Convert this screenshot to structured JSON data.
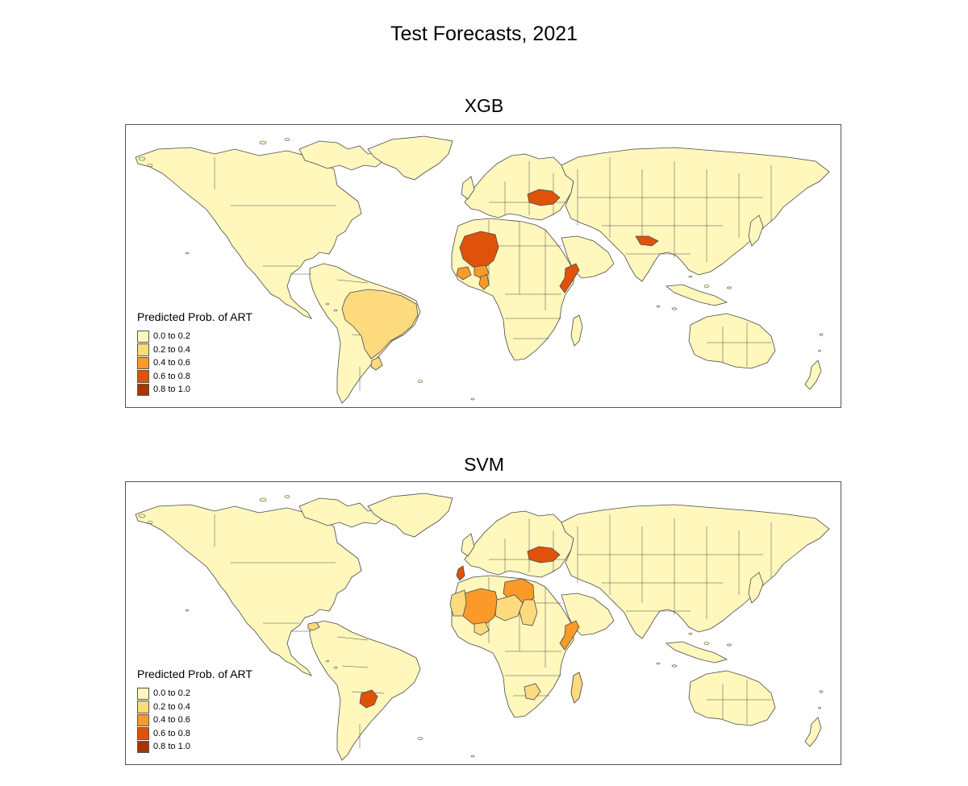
{
  "title": "Test Forecasts, 2021",
  "legend": {
    "title": "Predicted Prob. of ART",
    "classes": [
      {
        "label": "0.0 to 0.2",
        "color": "#FFF7BC"
      },
      {
        "label": "0.2 to 0.4",
        "color": "#FEDA7F"
      },
      {
        "label": "0.4 to 0.6",
        "color": "#FB9A29"
      },
      {
        "label": "0.6 to 0.8",
        "color": "#E05209"
      },
      {
        "label": "0.8 to 1.0",
        "color": "#A63603"
      }
    ]
  },
  "panels": [
    {
      "title": "XGB",
      "highlighted": [
        {
          "region": "brazil",
          "class": 1
        },
        {
          "region": "uruguay",
          "class": 1
        },
        {
          "region": "mali",
          "class": 3
        },
        {
          "region": "burkina-faso",
          "class": 2
        },
        {
          "region": "ghana",
          "class": 2
        },
        {
          "region": "guinea",
          "class": 2
        },
        {
          "region": "somalia",
          "class": 3
        },
        {
          "region": "ukraine",
          "class": 3
        },
        {
          "region": "nepal",
          "class": 3
        }
      ]
    },
    {
      "title": "SVM",
      "highlighted": [
        {
          "region": "portugal",
          "class": 3
        },
        {
          "region": "libya",
          "class": 2
        },
        {
          "region": "mali",
          "class": 2
        },
        {
          "region": "mauritania",
          "class": 1
        },
        {
          "region": "niger",
          "class": 1
        },
        {
          "region": "burkina-faso",
          "class": 1
        },
        {
          "region": "chad",
          "class": 1
        },
        {
          "region": "somalia",
          "class": 2
        },
        {
          "region": "ukraine",
          "class": 3
        },
        {
          "region": "paraguay",
          "class": 3
        },
        {
          "region": "honduras",
          "class": 1
        },
        {
          "region": "zimbabwe",
          "class": 1
        },
        {
          "region": "madagascar",
          "class": 1
        }
      ]
    }
  ]
}
